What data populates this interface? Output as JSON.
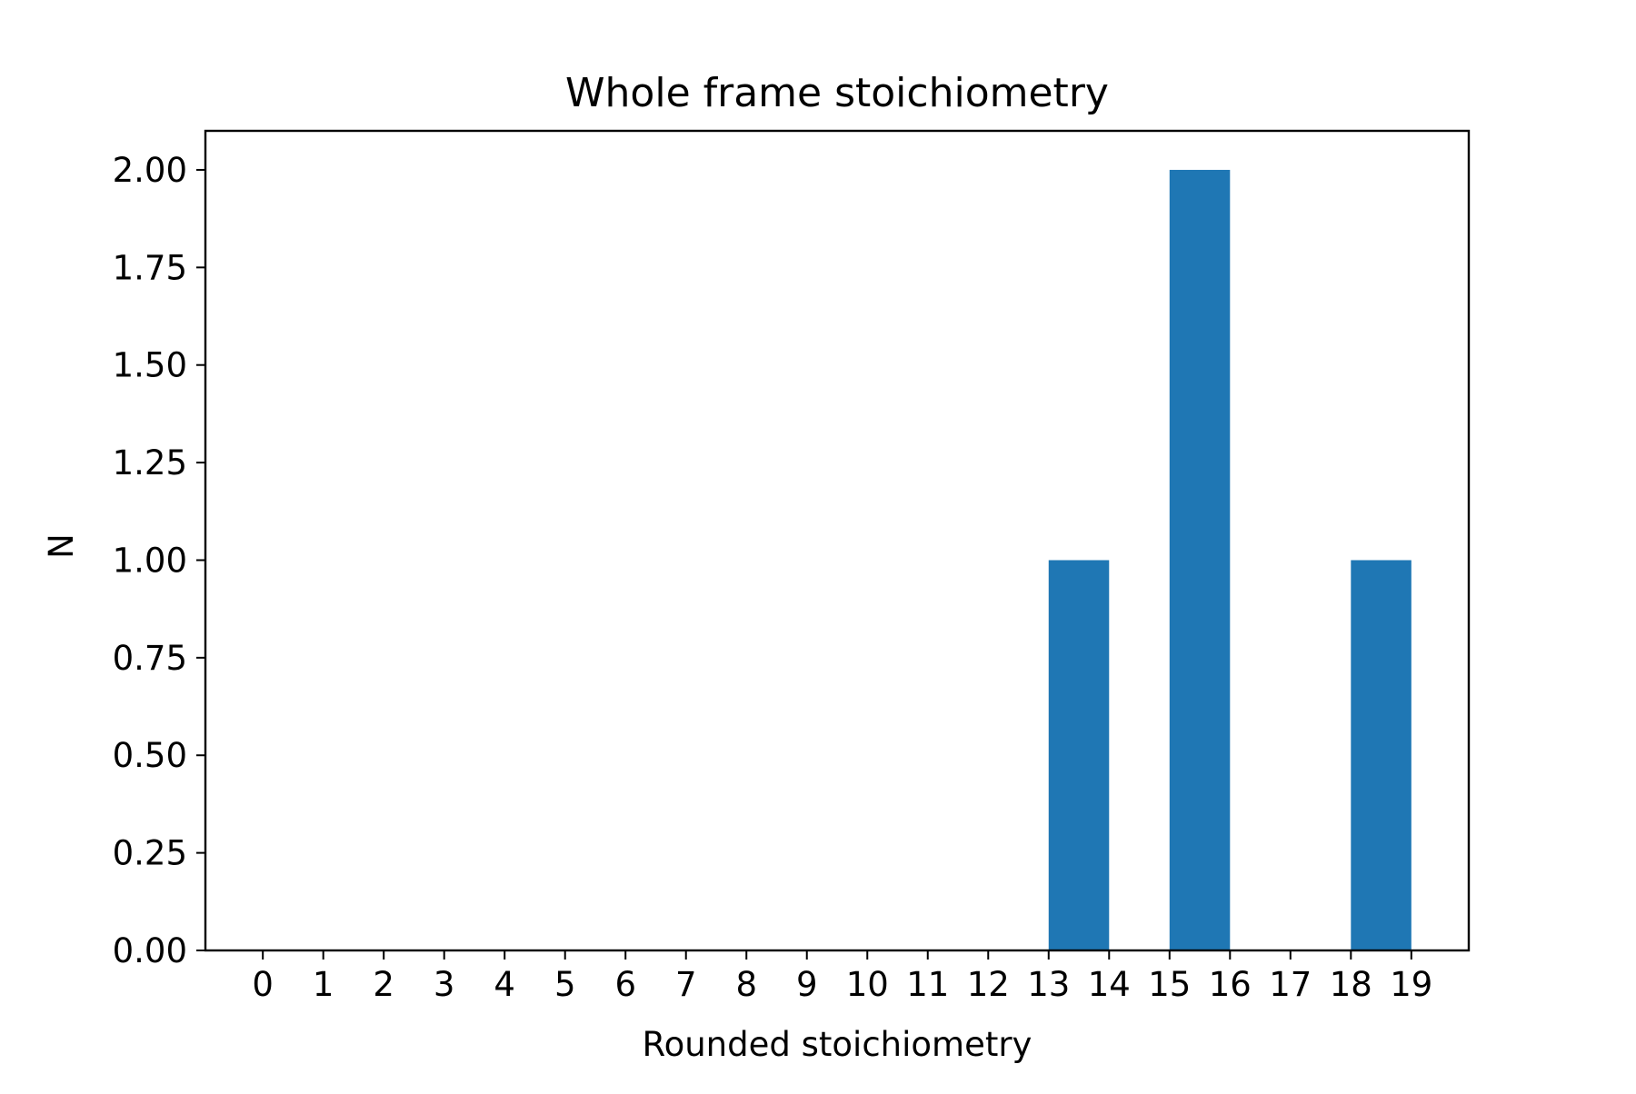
{
  "chart_data": {
    "type": "bar",
    "title": "Whole frame stoichiometry",
    "xlabel": "Rounded stoichiometry",
    "ylabel": "N",
    "bin_edges": [
      13,
      14,
      15,
      16,
      18,
      19
    ],
    "bars": [
      {
        "x_start": 13,
        "x_end": 14,
        "value": 1
      },
      {
        "x_start": 15,
        "x_end": 16,
        "value": 2
      },
      {
        "x_start": 18,
        "x_end": 19,
        "value": 1
      }
    ],
    "xlim": [
      -0.95,
      19.95
    ],
    "ylim": [
      0,
      2.1
    ],
    "x_ticks": [
      "0",
      "1",
      "2",
      "3",
      "4",
      "5",
      "6",
      "7",
      "8",
      "9",
      "10",
      "11",
      "12",
      "13",
      "14",
      "15",
      "16",
      "17",
      "18",
      "19"
    ],
    "y_ticks": [
      "0.00",
      "0.25",
      "0.50",
      "0.75",
      "1.00",
      "1.25",
      "1.50",
      "1.75",
      "2.00"
    ],
    "bar_color": "#1f77b4",
    "grid": false,
    "legend": "none"
  }
}
